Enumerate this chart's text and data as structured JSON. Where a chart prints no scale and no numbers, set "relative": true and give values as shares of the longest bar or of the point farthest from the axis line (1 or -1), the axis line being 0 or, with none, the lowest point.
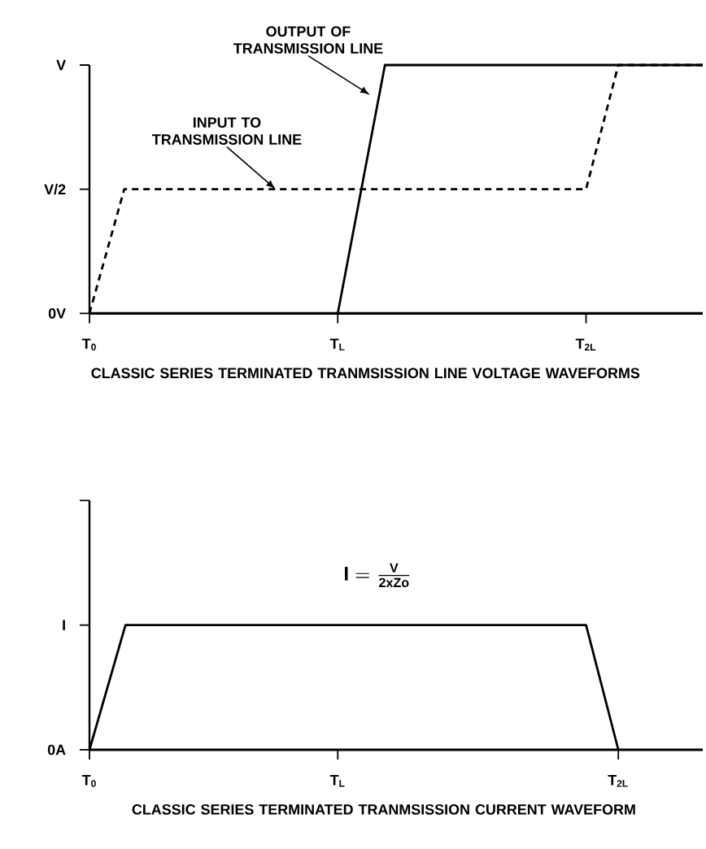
{
  "chart_data": [
    {
      "type": "line",
      "xlabel": "CLASSIC SERIES TERMINATED TRANMSISSION LINE VOLTAGE WAVEFORMS",
      "relative": true,
      "xlim": [
        0,
        2.47
      ],
      "xticks": [
        {
          "value": 0,
          "label": "T$_{0}$"
        },
        {
          "value": 1,
          "label": "T$_{L}$"
        },
        {
          "value": 2,
          "label": "T$_{2L}$"
        }
      ],
      "series": [
        {
          "color": "#000000",
          "line_style": "solid",
          "x": [
            1,
            1.19,
            2.47
          ],
          "values": [
            0,
            1,
            1
          ]
        },
        {
          "color": "#000000",
          "line_style": "dashed",
          "x": [
            0,
            0.14,
            2.0,
            2.13,
            2.47
          ],
          "values": [
            0,
            0.5,
            0.5,
            1,
            1
          ]
        }
      ],
      "annotations": [
        {
          "text": "OUTPUT OF TRANSMISSION LINE",
          "x": 1.13,
          "y": 0.88
        },
        {
          "text": "INPUT TO TRANSMISSION LINE",
          "x": 0.75,
          "y": 0.5
        },
        "V",
        "V/2",
        "0V"
      ]
    },
    {
      "type": "line",
      "xlabel": "CLASSIC SERIES TERMINATED TRANMSISSION CURRENT WAVEFORM",
      "relative": true,
      "xlim": [
        0,
        2.47
      ],
      "xticks": [
        {
          "value": 0,
          "label": "T$_{0}$"
        },
        {
          "value": 1,
          "label": "T$_{L}$"
        },
        {
          "value": 2.13,
          "label": "T$_{2L}$"
        }
      ],
      "series": [
        {
          "color": "#000000",
          "line_style": "solid",
          "x": [
            0,
            0.145,
            2.0,
            2.13
          ],
          "values": [
            0,
            1,
            1,
            0
          ]
        }
      ],
      "annotations": [
        "\\mathbf{I}=\\frac{\\mathbf{V}}{\\mathbf{2xZo}}",
        "I",
        "0A"
      ]
    }
  ]
}
